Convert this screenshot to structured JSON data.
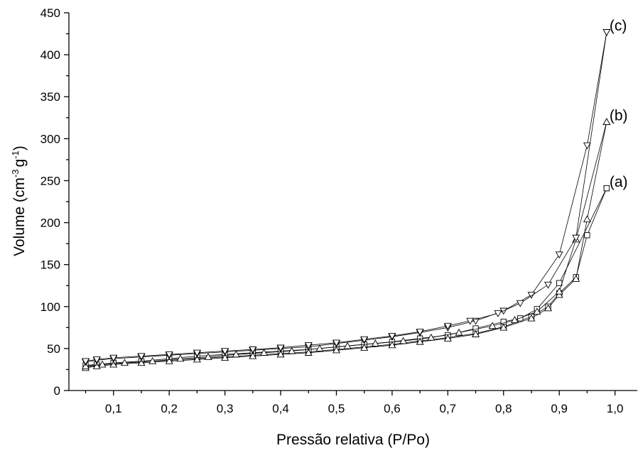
{
  "chart_data": {
    "type": "line",
    "xlabel": "Pressão relativa (P/Po)",
    "ylabel": "Volume (cm",
    "ylabel_sup1": "-3",
    "ylabel_mid": "g",
    "ylabel_sup2": "-1",
    "ylabel_end": ")",
    "xlim": [
      0.02,
      1.04
    ],
    "ylim": [
      0,
      450
    ],
    "xticks": [
      {
        "v": 0.1,
        "label": "0,1"
      },
      {
        "v": 0.2,
        "label": "0,2"
      },
      {
        "v": 0.3,
        "label": "0,3"
      },
      {
        "v": 0.4,
        "label": "0,4"
      },
      {
        "v": 0.5,
        "label": "0,5"
      },
      {
        "v": 0.6,
        "label": "0,6"
      },
      {
        "v": 0.7,
        "label": "0,7"
      },
      {
        "v": 0.8,
        "label": "0,8"
      },
      {
        "v": 0.9,
        "label": "0,9"
      },
      {
        "v": 1.0,
        "label": "1,0"
      }
    ],
    "yticks": [
      {
        "v": 0,
        "label": "0"
      },
      {
        "v": 50,
        "label": "50"
      },
      {
        "v": 100,
        "label": "100"
      },
      {
        "v": 150,
        "label": "150"
      },
      {
        "v": 200,
        "label": "200"
      },
      {
        "v": 250,
        "label": "250"
      },
      {
        "v": 300,
        "label": "300"
      },
      {
        "v": 350,
        "label": "350"
      },
      {
        "v": 400,
        "label": "400"
      },
      {
        "v": 450,
        "label": "450"
      }
    ],
    "grid": false,
    "series": [
      {
        "name": "(a)",
        "marker": "square",
        "adsorption": [
          [
            0.05,
            28
          ],
          [
            0.07,
            30
          ],
          [
            0.1,
            32
          ],
          [
            0.15,
            34
          ],
          [
            0.2,
            36
          ],
          [
            0.25,
            38
          ],
          [
            0.3,
            40
          ],
          [
            0.35,
            42
          ],
          [
            0.4,
            44
          ],
          [
            0.45,
            46
          ],
          [
            0.5,
            49
          ],
          [
            0.55,
            52
          ],
          [
            0.6,
            55
          ],
          [
            0.65,
            59
          ],
          [
            0.7,
            63
          ],
          [
            0.75,
            68
          ],
          [
            0.8,
            76
          ],
          [
            0.85,
            88
          ],
          [
            0.88,
            100
          ],
          [
            0.9,
            116
          ],
          [
            0.93,
            135
          ],
          [
            0.95,
            185
          ],
          [
            0.985,
            241
          ]
        ],
        "desorption": [
          [
            0.985,
            241
          ],
          [
            0.9,
            128
          ],
          [
            0.86,
            97
          ],
          [
            0.83,
            86
          ],
          [
            0.8,
            82
          ],
          [
            0.75,
            74
          ],
          [
            0.7,
            66
          ],
          [
            0.65,
            62
          ],
          [
            0.6,
            58
          ],
          [
            0.55,
            55
          ],
          [
            0.5,
            52
          ],
          [
            0.45,
            49
          ],
          [
            0.4,
            47
          ],
          [
            0.35,
            45
          ],
          [
            0.3,
            43
          ],
          [
            0.25,
            41
          ],
          [
            0.2,
            38
          ],
          [
            0.15,
            35
          ],
          [
            0.1,
            33
          ],
          [
            0.07,
            31
          ],
          [
            0.05,
            30
          ]
        ]
      },
      {
        "name": "(b)",
        "marker": "triangle-up",
        "adsorption": [
          [
            0.05,
            27
          ],
          [
            0.07,
            29
          ],
          [
            0.1,
            31
          ],
          [
            0.15,
            33
          ],
          [
            0.2,
            35
          ],
          [
            0.25,
            37
          ],
          [
            0.3,
            39
          ],
          [
            0.35,
            41
          ],
          [
            0.4,
            43
          ],
          [
            0.45,
            45
          ],
          [
            0.5,
            48
          ],
          [
            0.55,
            51
          ],
          [
            0.6,
            54
          ],
          [
            0.65,
            58
          ],
          [
            0.7,
            62
          ],
          [
            0.75,
            67
          ],
          [
            0.8,
            75
          ],
          [
            0.85,
            86
          ],
          [
            0.88,
            98
          ],
          [
            0.9,
            114
          ],
          [
            0.93,
            133
          ],
          [
            0.95,
            204
          ],
          [
            0.985,
            320
          ]
        ],
        "desorption": [
          [
            0.985,
            320
          ],
          [
            0.93,
            180
          ],
          [
            0.9,
            118
          ],
          [
            0.86,
            94
          ],
          [
            0.82,
            84
          ],
          [
            0.78,
            77
          ],
          [
            0.72,
            69
          ],
          [
            0.67,
            63
          ],
          [
            0.62,
            59
          ],
          [
            0.57,
            56
          ],
          [
            0.52,
            53
          ],
          [
            0.47,
            50
          ],
          [
            0.42,
            47
          ],
          [
            0.37,
            45
          ],
          [
            0.32,
            43
          ],
          [
            0.27,
            40
          ],
          [
            0.22,
            38
          ],
          [
            0.17,
            35
          ],
          [
            0.12,
            33
          ],
          [
            0.08,
            31
          ],
          [
            0.05,
            29
          ]
        ]
      },
      {
        "name": "(c)",
        "marker": "triangle-down",
        "adsorption": [
          [
            0.05,
            34
          ],
          [
            0.07,
            36
          ],
          [
            0.1,
            38
          ],
          [
            0.15,
            40
          ],
          [
            0.2,
            42
          ],
          [
            0.25,
            44
          ],
          [
            0.3,
            46
          ],
          [
            0.35,
            48
          ],
          [
            0.4,
            50
          ],
          [
            0.45,
            52
          ],
          [
            0.5,
            56
          ],
          [
            0.55,
            60
          ],
          [
            0.6,
            64
          ],
          [
            0.65,
            69
          ],
          [
            0.7,
            75
          ],
          [
            0.75,
            83
          ],
          [
            0.8,
            95
          ],
          [
            0.85,
            114
          ],
          [
            0.9,
            162
          ],
          [
            0.95,
            292
          ],
          [
            0.985,
            427
          ]
        ],
        "desorption": [
          [
            0.985,
            427
          ],
          [
            0.93,
            182
          ],
          [
            0.88,
            126
          ],
          [
            0.83,
            104
          ],
          [
            0.79,
            92
          ],
          [
            0.74,
            83
          ],
          [
            0.7,
            77
          ],
          [
            0.65,
            70
          ],
          [
            0.6,
            65
          ],
          [
            0.55,
            61
          ],
          [
            0.5,
            57
          ],
          [
            0.45,
            54
          ],
          [
            0.4,
            51
          ],
          [
            0.35,
            49
          ],
          [
            0.3,
            47
          ],
          [
            0.25,
            45
          ],
          [
            0.2,
            43
          ],
          [
            0.15,
            41
          ],
          [
            0.1,
            39
          ],
          [
            0.07,
            37
          ],
          [
            0.05,
            35
          ]
        ]
      }
    ]
  }
}
